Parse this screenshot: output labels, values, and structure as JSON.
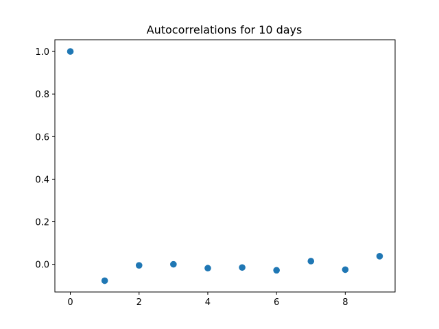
{
  "chart_data": {
    "type": "scatter",
    "title": "Autocorrelations for 10 days",
    "xlabel": "",
    "ylabel": "",
    "x": [
      0,
      1,
      2,
      3,
      4,
      5,
      6,
      7,
      8,
      9
    ],
    "y": [
      1.0,
      -0.077,
      -0.005,
      0.0,
      -0.018,
      -0.015,
      -0.028,
      0.015,
      -0.025,
      0.038
    ],
    "xlim": [
      -0.45,
      9.45
    ],
    "ylim": [
      -0.13,
      1.055
    ],
    "xticks": [
      0,
      2,
      4,
      6,
      8
    ],
    "xtick_labels": [
      "0",
      "2",
      "4",
      "6",
      "8"
    ],
    "yticks": [
      0.0,
      0.2,
      0.4,
      0.6,
      0.8,
      1.0
    ],
    "ytick_labels": [
      "0.0",
      "0.2",
      "0.4",
      "0.6",
      "0.8",
      "1.0"
    ],
    "grid": false,
    "legend": "none",
    "marker_color": "#1f77b4"
  }
}
